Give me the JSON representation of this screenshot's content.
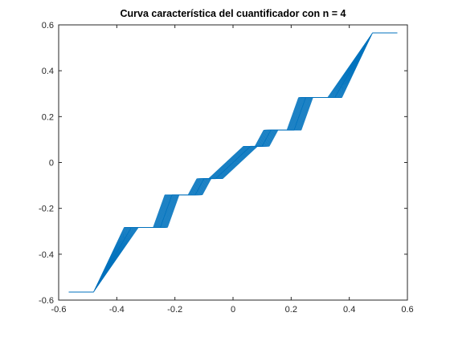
{
  "chart_data": {
    "type": "line",
    "title": "Curva característica del cuantificador con n = 4",
    "xlabel": "",
    "ylabel": "",
    "xlim": [
      -0.6,
      0.6
    ],
    "ylim": [
      -0.6,
      0.6
    ],
    "xticks": [
      -0.6,
      -0.4,
      -0.2,
      0,
      0.2,
      0.4,
      0.6
    ],
    "yticks": [
      -0.6,
      -0.4,
      -0.2,
      0,
      0.2,
      0.4,
      0.6
    ],
    "xtick_labels": [
      "-0.6",
      "-0.4",
      "-0.2",
      "0",
      "0.2",
      "0.4",
      "0.6"
    ],
    "ytick_labels": [
      "-0.6",
      "-0.4",
      "-0.2",
      "0",
      "0.2",
      "0.4",
      "0.6"
    ],
    "grid": false,
    "line_color": "#0072BD",
    "series": [
      {
        "x": [
          -0.565,
          -0.48,
          -0.35,
          -0.33,
          -0.25,
          -0.21,
          -0.16,
          -0.13,
          -0.1,
          -0.06,
          0,
          0.06,
          0.1,
          0.13,
          0.16,
          0.21,
          0.25,
          0.33,
          0.35,
          0.48,
          0.565
        ],
        "y": [
          -0.565,
          -0.565,
          -0.283,
          -0.283,
          -0.283,
          -0.141,
          -0.141,
          -0.141,
          -0.0707,
          -0.0707,
          0,
          0.0707,
          0.0707,
          0.141,
          0.141,
          0.141,
          0.283,
          0.283,
          0.283,
          0.565,
          0.565
        ]
      }
    ]
  }
}
